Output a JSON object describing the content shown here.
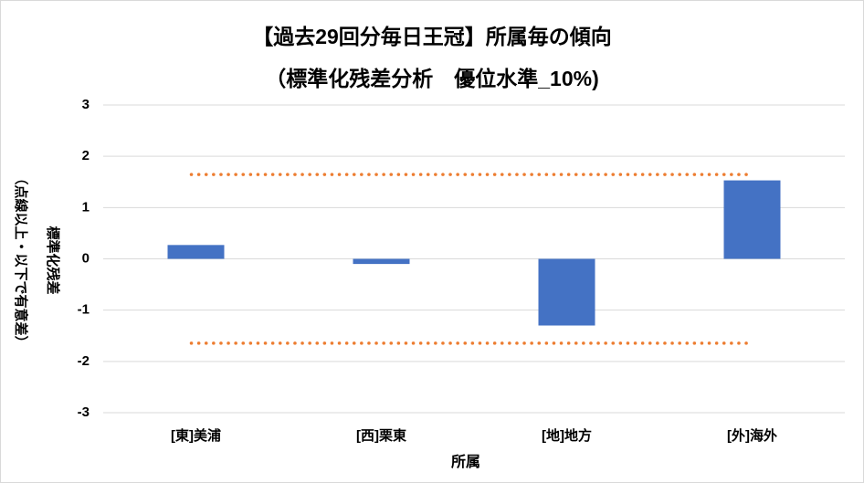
{
  "chart_data": {
    "type": "bar",
    "title": [
      "【過去29回分毎日王冠】所属毎の傾向",
      "（標準化残差分析　優位水準_10%)"
    ],
    "x_label": "所属",
    "y_label": [
      "標準化残差",
      "（点線以上・以下で有意差）"
    ],
    "categories": [
      "[東]美浦",
      "[西]栗東",
      "[地]地方",
      "[外]海外"
    ],
    "values": [
      0.27,
      -0.1,
      -1.3,
      1.53
    ],
    "color": "#4472c4",
    "reference_lines": [
      1.645,
      -1.645
    ],
    "reference_color": "#ed7d31",
    "ylim": [
      -3,
      3
    ],
    "yticks": [
      -3,
      -2,
      -1,
      0,
      1,
      2,
      3
    ],
    "grid": true
  }
}
